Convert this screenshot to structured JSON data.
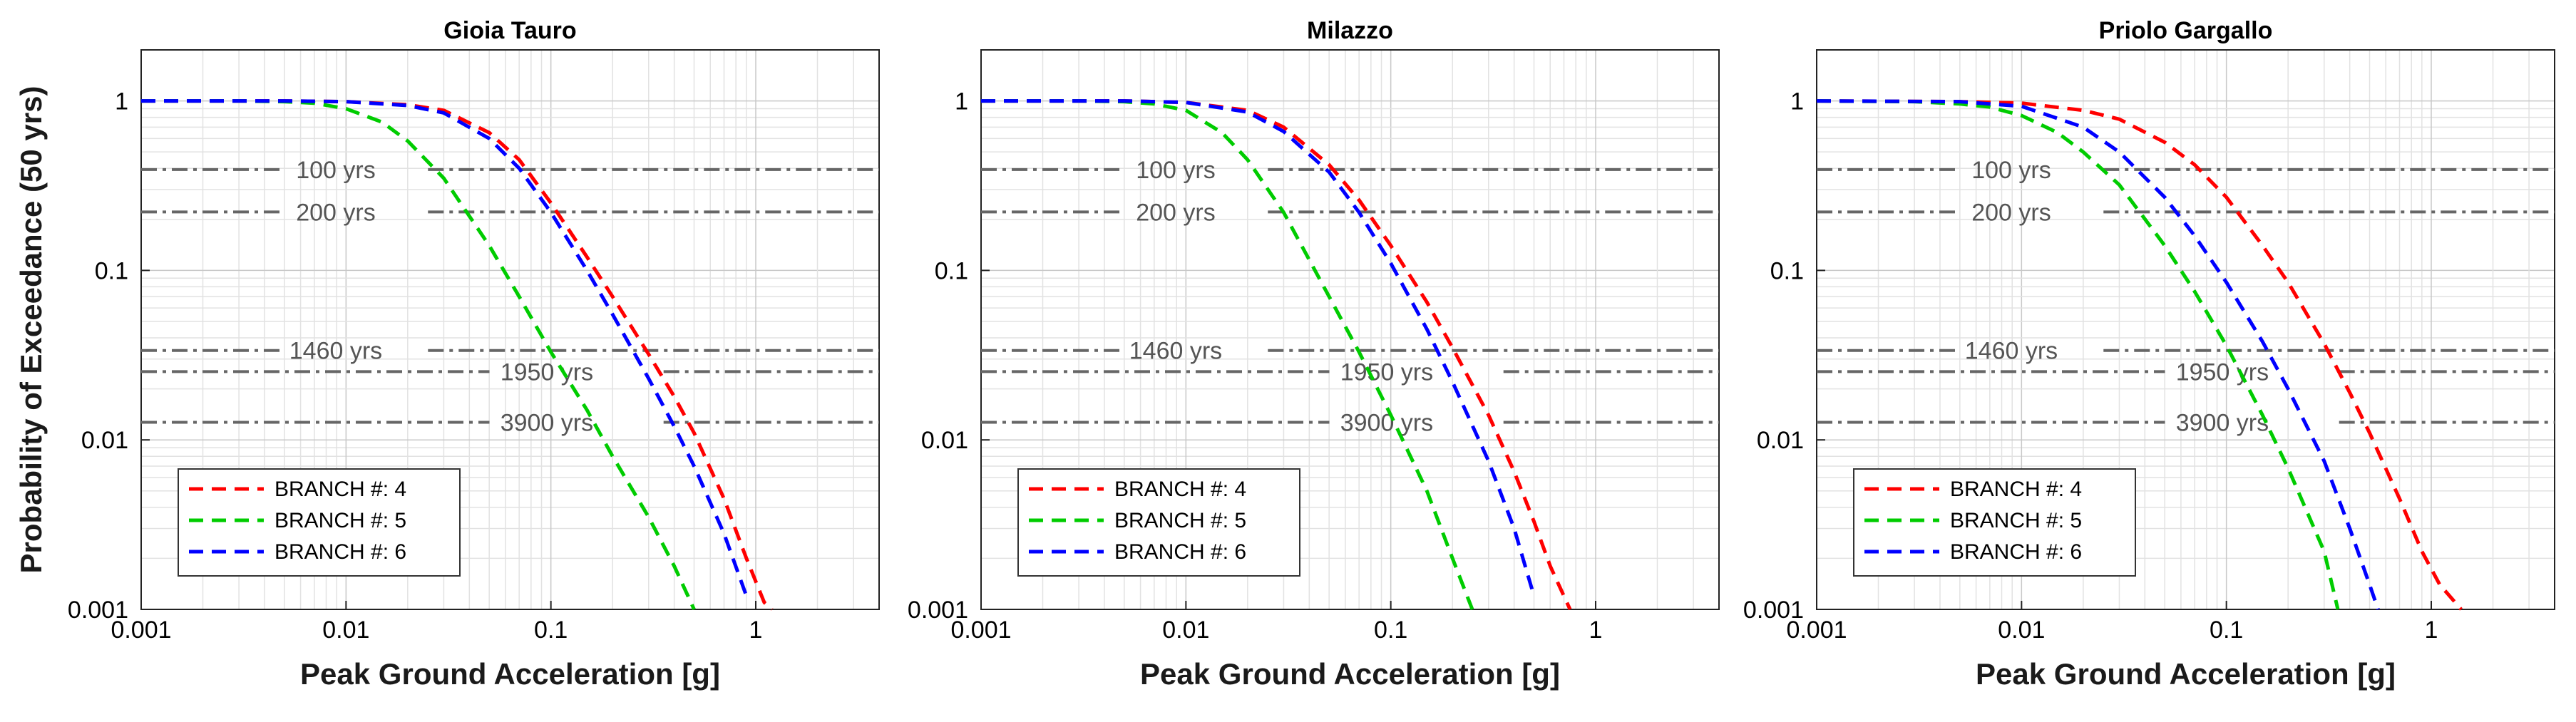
{
  "chart_data": [
    {
      "type": "line",
      "title": "Gioia Tauro",
      "xlabel": "Peak Ground Acceleration [g]",
      "ylabel": "Probability of Exceedance (50 yrs)",
      "xscale": "log",
      "yscale": "log",
      "xlim": [
        0.001,
        4
      ],
      "ylim": [
        0.001,
        2
      ],
      "xticks": [
        "0.001",
        "0.01",
        "0.1",
        "1"
      ],
      "yticks": [
        "0.001",
        "0.01",
        "0.1",
        "1"
      ],
      "grid": true,
      "legend_position": "lower-left",
      "return_periods": [
        {
          "label": "100 yrs",
          "poe": 0.3935
        },
        {
          "label": "200 yrs",
          "poe": 0.2212
        },
        {
          "label": "1460 yrs",
          "poe": 0.0337
        },
        {
          "label": "1950 yrs",
          "poe": 0.0253
        },
        {
          "label": "3900 yrs",
          "poe": 0.0127
        }
      ],
      "series": [
        {
          "name": "BRANCH #: 4",
          "color": "#ff0000",
          "x": [
            0.001,
            0.005,
            0.01,
            0.02,
            0.03,
            0.05,
            0.07,
            0.1,
            0.15,
            0.2,
            0.3,
            0.4,
            0.5,
            0.7,
            0.9,
            1.1,
            1.2
          ],
          "y": [
            1,
            1,
            0.99,
            0.95,
            0.88,
            0.65,
            0.45,
            0.25,
            0.12,
            0.07,
            0.032,
            0.018,
            0.011,
            0.0045,
            0.002,
            0.0011,
            0.001
          ]
        },
        {
          "name": "BRANCH #: 5",
          "color": "#00cc00",
          "x": [
            0.001,
            0.003,
            0.005,
            0.007,
            0.01,
            0.015,
            0.02,
            0.03,
            0.05,
            0.07,
            0.1,
            0.15,
            0.2,
            0.3,
            0.4,
            0.5
          ],
          "y": [
            1,
            1,
            0.99,
            0.97,
            0.9,
            0.75,
            0.58,
            0.35,
            0.14,
            0.07,
            0.033,
            0.015,
            0.008,
            0.0035,
            0.0018,
            0.001
          ]
        },
        {
          "name": "BRANCH #: 6",
          "color": "#0000ff",
          "x": [
            0.001,
            0.005,
            0.01,
            0.02,
            0.03,
            0.05,
            0.07,
            0.1,
            0.15,
            0.2,
            0.3,
            0.4,
            0.5,
            0.7,
            0.9
          ],
          "y": [
            1,
            1,
            0.99,
            0.94,
            0.85,
            0.6,
            0.4,
            0.22,
            0.1,
            0.055,
            0.023,
            0.012,
            0.007,
            0.0028,
            0.0012
          ]
        }
      ]
    },
    {
      "type": "line",
      "title": "Milazzo",
      "xlabel": "Peak Ground Acceleration [g]",
      "ylabel": "",
      "xscale": "log",
      "yscale": "log",
      "xlim": [
        0.001,
        4
      ],
      "ylim": [
        0.001,
        2
      ],
      "xticks": [
        "0.001",
        "0.01",
        "0.1",
        "1"
      ],
      "yticks": [
        "0.001",
        "0.01",
        "0.1",
        "1"
      ],
      "grid": true,
      "legend_position": "lower-left",
      "return_periods": [
        {
          "label": "100 yrs",
          "poe": 0.3935
        },
        {
          "label": "200 yrs",
          "poe": 0.2212
        },
        {
          "label": "1460 yrs",
          "poe": 0.0337
        },
        {
          "label": "1950 yrs",
          "poe": 0.0253
        },
        {
          "label": "3900 yrs",
          "poe": 0.0127
        }
      ],
      "series": [
        {
          "name": "BRANCH #: 4",
          "color": "#ff0000",
          "x": [
            0.001,
            0.005,
            0.01,
            0.02,
            0.03,
            0.05,
            0.07,
            0.1,
            0.15,
            0.2,
            0.3,
            0.4,
            0.5,
            0.6,
            0.75
          ],
          "y": [
            1,
            1,
            0.98,
            0.88,
            0.7,
            0.42,
            0.26,
            0.14,
            0.065,
            0.035,
            0.014,
            0.0065,
            0.0033,
            0.0018,
            0.001
          ]
        },
        {
          "name": "BRANCH #: 5",
          "color": "#00cc00",
          "x": [
            0.001,
            0.003,
            0.005,
            0.007,
            0.01,
            0.015,
            0.02,
            0.03,
            0.05,
            0.07,
            0.1,
            0.15,
            0.2,
            0.25
          ],
          "y": [
            1,
            1,
            0.99,
            0.96,
            0.88,
            0.65,
            0.45,
            0.22,
            0.07,
            0.033,
            0.014,
            0.005,
            0.002,
            0.001
          ]
        },
        {
          "name": "BRANCH #: 6",
          "color": "#0000ff",
          "x": [
            0.001,
            0.005,
            0.01,
            0.02,
            0.03,
            0.05,
            0.07,
            0.1,
            0.15,
            0.2,
            0.3,
            0.4,
            0.5
          ],
          "y": [
            1,
            1,
            0.98,
            0.86,
            0.66,
            0.38,
            0.22,
            0.11,
            0.045,
            0.022,
            0.0075,
            0.003,
            0.0012
          ]
        }
      ]
    },
    {
      "type": "line",
      "title": "Priolo Gargallo",
      "xlabel": "Peak Ground Acceleration [g]",
      "ylabel": "",
      "xscale": "log",
      "yscale": "log",
      "xlim": [
        0.001,
        4
      ],
      "ylim": [
        0.001,
        2
      ],
      "xticks": [
        "0.001",
        "0.01",
        "0.1",
        "1"
      ],
      "yticks": [
        "0.001",
        "0.01",
        "0.1",
        "1"
      ],
      "grid": true,
      "legend_position": "lower-left",
      "return_periods": [
        {
          "label": "100 yrs",
          "poe": 0.3935
        },
        {
          "label": "200 yrs",
          "poe": 0.2212
        },
        {
          "label": "1460 yrs",
          "poe": 0.0337
        },
        {
          "label": "1950 yrs",
          "poe": 0.0253
        },
        {
          "label": "3900 yrs",
          "poe": 0.0127
        }
      ],
      "series": [
        {
          "name": "BRANCH #: 4",
          "color": "#ff0000",
          "x": [
            0.001,
            0.005,
            0.01,
            0.02,
            0.03,
            0.05,
            0.07,
            0.1,
            0.15,
            0.2,
            0.3,
            0.4,
            0.5,
            0.7,
            0.9,
            1.1,
            1.4
          ],
          "y": [
            1,
            0.99,
            0.97,
            0.88,
            0.78,
            0.57,
            0.42,
            0.27,
            0.14,
            0.085,
            0.037,
            0.019,
            0.011,
            0.0045,
            0.0022,
            0.0014,
            0.001
          ]
        },
        {
          "name": "BRANCH #: 5",
          "color": "#00cc00",
          "x": [
            0.001,
            0.003,
            0.005,
            0.007,
            0.01,
            0.015,
            0.02,
            0.03,
            0.05,
            0.07,
            0.1,
            0.15,
            0.2,
            0.3,
            0.35
          ],
          "y": [
            1,
            0.99,
            0.96,
            0.92,
            0.82,
            0.65,
            0.5,
            0.32,
            0.14,
            0.075,
            0.036,
            0.014,
            0.0068,
            0.0022,
            0.001
          ]
        },
        {
          "name": "BRANCH #: 6",
          "color": "#0000ff",
          "x": [
            0.001,
            0.005,
            0.01,
            0.02,
            0.03,
            0.05,
            0.07,
            0.1,
            0.15,
            0.2,
            0.3,
            0.4,
            0.5,
            0.55
          ],
          "y": [
            1,
            0.99,
            0.93,
            0.7,
            0.5,
            0.27,
            0.16,
            0.085,
            0.038,
            0.02,
            0.0075,
            0.003,
            0.0014,
            0.001
          ]
        }
      ]
    }
  ]
}
